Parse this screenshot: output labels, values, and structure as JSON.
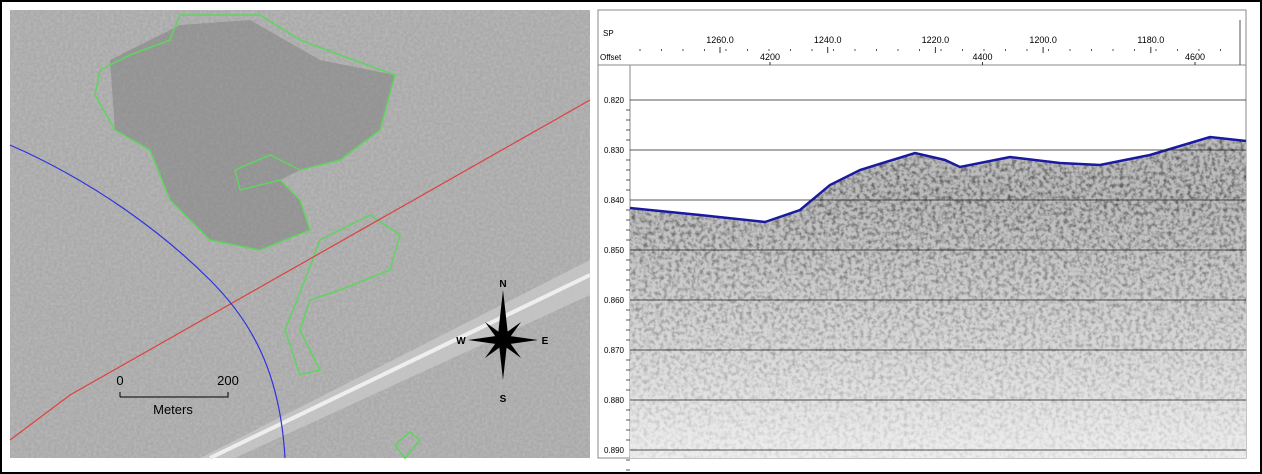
{
  "map": {
    "scale_bar": {
      "start": "0",
      "end": "200",
      "unit": "Meters"
    },
    "compass": {
      "north": "N",
      "east": "E",
      "south": "S",
      "west": "W"
    }
  },
  "profile": {
    "sp_label": "SP",
    "sp_ticks": [
      "1260.0",
      "1240.0",
      "1220.0",
      "1200.0",
      "1180.0"
    ],
    "offset_label": "Offset",
    "offset_ticks": [
      "4200",
      "4400",
      "4600"
    ],
    "time_ticks": [
      "0.820",
      "0.830",
      "0.840",
      "0.850",
      "0.860",
      "0.870",
      "0.880",
      "0.890"
    ]
  }
}
